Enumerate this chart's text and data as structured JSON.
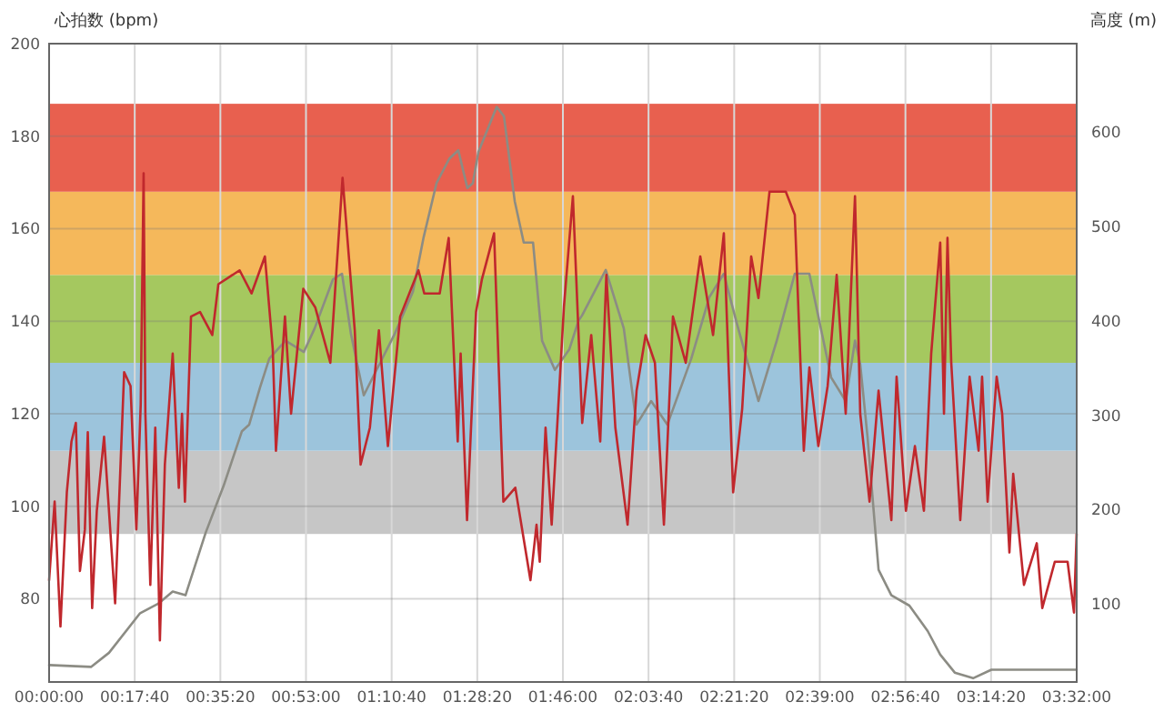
{
  "chart_data": {
    "type": "line",
    "ylabel": "心拍数 (bpm)",
    "y2label": "高度 (m)",
    "xlim": [
      0,
      3.5333
    ],
    "xticks": [
      {
        "value": 0,
        "label": "00:00:00"
      },
      {
        "value": 0.2944,
        "label": "00:17:40"
      },
      {
        "value": 0.5889,
        "label": "00:35:20"
      },
      {
        "value": 0.8833,
        "label": "00:53:00"
      },
      {
        "value": 1.1778,
        "label": "01:10:40"
      },
      {
        "value": 1.4722,
        "label": "01:28:20"
      },
      {
        "value": 1.7667,
        "label": "01:46:00"
      },
      {
        "value": 2.0611,
        "label": "02:03:40"
      },
      {
        "value": 2.3556,
        "label": "02:21:20"
      },
      {
        "value": 2.65,
        "label": "02:39:00"
      },
      {
        "value": 2.9444,
        "label": "02:56:40"
      },
      {
        "value": 3.2389,
        "label": "03:14:20"
      },
      {
        "value": 3.5333,
        "label": "03:32:00"
      }
    ],
    "ylim": [
      62,
      200
    ],
    "yticks": [
      80,
      100,
      120,
      140,
      160,
      180,
      200
    ],
    "y2lim": [
      17,
      694
    ],
    "y2ticks": [
      100,
      200,
      300,
      400,
      500,
      600
    ],
    "grid": true,
    "marker": "none",
    "line_style": "solid",
    "bands": [
      {
        "axis": "y",
        "from": 94,
        "to": 112,
        "color": "#c6c6c6"
      },
      {
        "axis": "y",
        "from": 112,
        "to": 131,
        "color": "#9cc4dc"
      },
      {
        "axis": "y",
        "from": 131,
        "to": 150,
        "color": "#a5c85f"
      },
      {
        "axis": "y",
        "from": 150,
        "to": 168,
        "color": "#f5b85b"
      },
      {
        "axis": "y",
        "from": 168,
        "to": 187,
        "color": "#e8604f"
      }
    ],
    "series": [
      {
        "color": "#8c8c84",
        "axis": "y2",
        "x": [
          0,
          0.144,
          0.206,
          0.313,
          0.375,
          0.425,
          0.469,
          0.538,
          0.6,
          0.663,
          0.688,
          0.725,
          0.757,
          0.813,
          0.876,
          0.913,
          0.976,
          1.007,
          1.038,
          1.082,
          1.126,
          1.188,
          1.251,
          1.288,
          1.332,
          1.376,
          1.407,
          1.438,
          1.457,
          1.476,
          1.539,
          1.564,
          1.601,
          1.632,
          1.664,
          1.695,
          1.739,
          1.789,
          1.82,
          1.833,
          1.914,
          1.976,
          2.02,
          2.07,
          2.126,
          2.208,
          2.27,
          2.32,
          2.364,
          2.439,
          2.502,
          2.564,
          2.614,
          2.689,
          2.739,
          2.771,
          2.789,
          2.814,
          2.852,
          2.896,
          2.958,
          3.021,
          3.064,
          3.114,
          3.177,
          3.24,
          3.533
        ],
        "values": [
          35,
          33,
          48,
          90,
          100,
          113,
          109,
          175,
          225,
          283,
          290,
          329,
          360,
          379,
          367,
          392,
          444,
          450,
          386,
          321,
          348,
          386,
          431,
          489,
          546,
          572,
          581,
          541,
          546,
          579,
          627,
          617,
          527,
          483,
          483,
          379,
          348,
          370,
          400,
          406,
          454,
          392,
          290,
          315,
          290,
          360,
          425,
          450,
          398,
          315,
          379,
          450,
          450,
          340,
          315,
          379,
          354,
          277,
          136,
          109,
          98,
          71,
          46,
          27,
          21,
          30,
          30
        ]
      },
      {
        "color": "#c0282d",
        "axis": "y",
        "x": [
          0,
          0.019,
          0.039,
          0.061,
          0.077,
          0.092,
          0.106,
          0.123,
          0.133,
          0.148,
          0.164,
          0.189,
          0.227,
          0.258,
          0.28,
          0.3,
          0.315,
          0.325,
          0.331,
          0.348,
          0.365,
          0.381,
          0.398,
          0.425,
          0.446,
          0.457,
          0.467,
          0.488,
          0.519,
          0.561,
          0.582,
          0.655,
          0.696,
          0.742,
          0.769,
          0.78,
          0.811,
          0.832,
          0.874,
          0.915,
          0.967,
          1.009,
          1.051,
          1.071,
          1.103,
          1.134,
          1.165,
          1.207,
          1.27,
          1.29,
          1.343,
          1.374,
          1.405,
          1.415,
          1.437,
          1.468,
          1.488,
          1.53,
          1.562,
          1.603,
          1.655,
          1.676,
          1.687,
          1.707,
          1.728,
          1.77,
          1.801,
          1.833,
          1.864,
          1.895,
          1.916,
          1.947,
          1.989,
          2.02,
          2.051,
          2.083,
          2.114,
          2.145,
          2.189,
          2.239,
          2.283,
          2.32,
          2.352,
          2.383,
          2.414,
          2.439,
          2.477,
          2.533,
          2.564,
          2.595,
          2.614,
          2.645,
          2.677,
          2.708,
          2.739,
          2.771,
          2.789,
          2.821,
          2.852,
          2.896,
          2.914,
          2.946,
          2.977,
          3.008,
          3.033,
          3.064,
          3.077,
          3.089,
          3.102,
          3.133,
          3.165,
          3.196,
          3.208,
          3.227,
          3.258,
          3.277,
          3.302,
          3.315,
          3.352,
          3.396,
          3.415,
          3.458,
          3.502,
          3.524,
          3.533
        ],
        "values": [
          84,
          101,
          74,
          103,
          114,
          118,
          86,
          95,
          116,
          78,
          99,
          115,
          79,
          129,
          126,
          95,
          122,
          172,
          120,
          83,
          117,
          71,
          109,
          133,
          104,
          120,
          101,
          141,
          142,
          137,
          148,
          151,
          146,
          154,
          134,
          112,
          141,
          120,
          147,
          143,
          131,
          171,
          138,
          109,
          117,
          138,
          113,
          141,
          151,
          146,
          146,
          158,
          114,
          133,
          97,
          142,
          149,
          159,
          101,
          104,
          84,
          96,
          88,
          117,
          96,
          143,
          167,
          118,
          137,
          114,
          150,
          117,
          96,
          125,
          137,
          131,
          96,
          141,
          131,
          154,
          137,
          159,
          103,
          121,
          154,
          145,
          168,
          168,
          163,
          112,
          130,
          113,
          126,
          150,
          120,
          167,
          120,
          101,
          125,
          97,
          128,
          99,
          113,
          99,
          133,
          157,
          120,
          158,
          131,
          97,
          128,
          112,
          128,
          101,
          128,
          120,
          90,
          107,
          83,
          92,
          78,
          88,
          88,
          77,
          94
        ]
      }
    ]
  }
}
